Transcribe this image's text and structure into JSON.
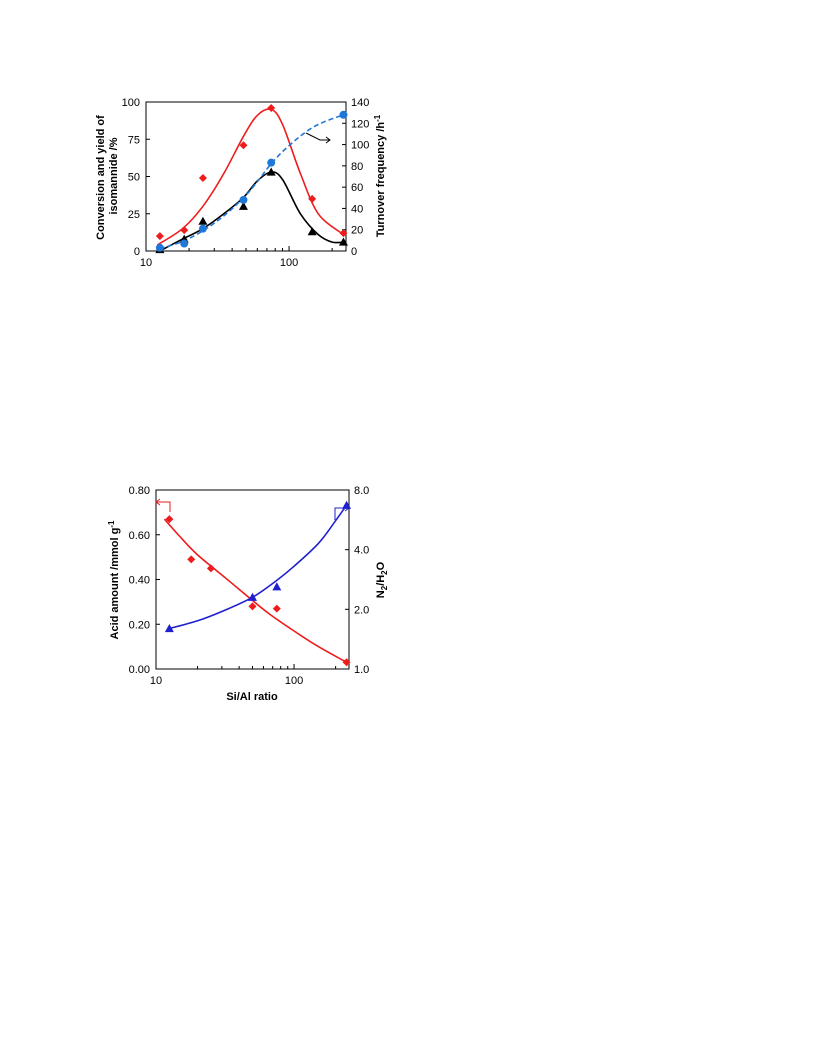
{
  "colors": {
    "red": "#ee1c1c",
    "black": "#000000",
    "blue": "#1f78d8",
    "navy": "#1f1fd0"
  },
  "chart_data": [
    {
      "type": "scatter",
      "xscale": "log",
      "xlim": [
        10,
        250
      ],
      "ylim": [
        0,
        100
      ],
      "y2lim": [
        0,
        140
      ],
      "xticks": [
        "10",
        "100"
      ],
      "yticks": [
        "0",
        "25",
        "50",
        "75",
        "100"
      ],
      "y2ticks": [
        "0",
        "20",
        "40",
        "60",
        "80",
        "100",
        "120",
        "140"
      ],
      "xlabel": "",
      "ylabel": "Conversion and yield of isomannide /%",
      "y2label": "Turnover frequency /h⁻¹",
      "grid": false,
      "series": [
        {
          "marker": "diamond",
          "color": "#ee1c1c",
          "axis": "left",
          "points": [
            [
              12.5,
              10
            ],
            [
              18.5,
              14
            ],
            [
              25,
              49
            ],
            [
              48,
              71
            ],
            [
              75,
              96
            ],
            [
              145,
              35
            ],
            [
              240,
              12
            ]
          ],
          "fit": [
            [
              12,
              4
            ],
            [
              18,
              15
            ],
            [
              25,
              30
            ],
            [
              35,
              52
            ],
            [
              48,
              77
            ],
            [
              60,
              91
            ],
            [
              75,
              95
            ],
            [
              90,
              85
            ],
            [
              120,
              52
            ],
            [
              160,
              25
            ],
            [
              240,
              11
            ]
          ],
          "dash": false
        },
        {
          "marker": "triangle",
          "color": "#000000",
          "axis": "left",
          "points": [
            [
              12.5,
              1
            ],
            [
              18.5,
              8
            ],
            [
              25,
              20
            ],
            [
              48,
              30
            ],
            [
              75,
              53
            ],
            [
              145,
              13
            ],
            [
              240,
              6
            ]
          ],
          "fit": [
            [
              12.5,
              0
            ],
            [
              18,
              8
            ],
            [
              25,
              15
            ],
            [
              35,
              25
            ],
            [
              48,
              36
            ],
            [
              60,
              47
            ],
            [
              75,
              53
            ],
            [
              90,
              48
            ],
            [
              120,
              25
            ],
            [
              160,
              11
            ],
            [
              200,
              6
            ],
            [
              240,
              6
            ]
          ],
          "dash": false
        },
        {
          "marker": "circle",
          "color": "#1f78d8",
          "axis": "right",
          "points": [
            [
              12.5,
              3
            ],
            [
              18.5,
              7
            ],
            [
              25,
              21
            ],
            [
              48,
              48
            ],
            [
              75,
              83
            ],
            [
              240,
              128
            ]
          ],
          "fit": [
            [
              12.5,
              2
            ],
            [
              18,
              9
            ],
            [
              25,
              19
            ],
            [
              35,
              33
            ],
            [
              48,
              50
            ],
            [
              60,
              65
            ],
            [
              75,
              82
            ],
            [
              100,
              99
            ],
            [
              150,
              117
            ],
            [
              240,
              128
            ]
          ],
          "dash": true
        }
      ]
    },
    {
      "type": "scatter",
      "xscale": "log",
      "xlim": [
        10,
        250
      ],
      "ylim": [
        0,
        0.8
      ],
      "y2lim": [
        1.0,
        8.0
      ],
      "xticks": [
        "10",
        "100"
      ],
      "yticks": [
        "0.00",
        "0.20",
        "0.40",
        "0.60",
        "0.80"
      ],
      "y2ticks": [
        "1.0",
        "2.0",
        "4.0",
        "8.0"
      ],
      "xlabel": "Si/Al ratio",
      "ylabel": "Acid amount /mmol g⁻¹",
      "y2label": "N₂/H₂O",
      "grid": false,
      "series": [
        {
          "marker": "diamond",
          "color": "#ee1c1c",
          "axis": "left",
          "points": [
            [
              12.5,
              0.67
            ],
            [
              18,
              0.49
            ],
            [
              25,
              0.45
            ],
            [
              50,
              0.28
            ],
            [
              75,
              0.27
            ],
            [
              240,
              0.03
            ]
          ],
          "fit": [
            [
              11.5,
              0.67
            ],
            [
              15,
              0.59
            ],
            [
              20,
              0.51
            ],
            [
              30,
              0.42
            ],
            [
              45,
              0.33
            ],
            [
              65,
              0.25
            ],
            [
              100,
              0.17
            ],
            [
              150,
              0.1
            ],
            [
              240,
              0.03
            ]
          ],
          "dash": false
        },
        {
          "marker": "triangle",
          "color": "#1f1fd0",
          "axis": "right",
          "points": [
            [
              12.5,
              1.6
            ],
            [
              50,
              2.3
            ],
            [
              75,
              2.6
            ],
            [
              240,
              6.7
            ]
          ],
          "fit": [
            [
              12.5,
              1.6
            ],
            [
              20,
              1.75
            ],
            [
              30,
              1.95
            ],
            [
              50,
              2.3
            ],
            [
              75,
              2.8
            ],
            [
              100,
              3.3
            ],
            [
              150,
              4.3
            ],
            [
              200,
              5.6
            ],
            [
              240,
              6.7
            ]
          ],
          "dash": false
        }
      ]
    }
  ]
}
